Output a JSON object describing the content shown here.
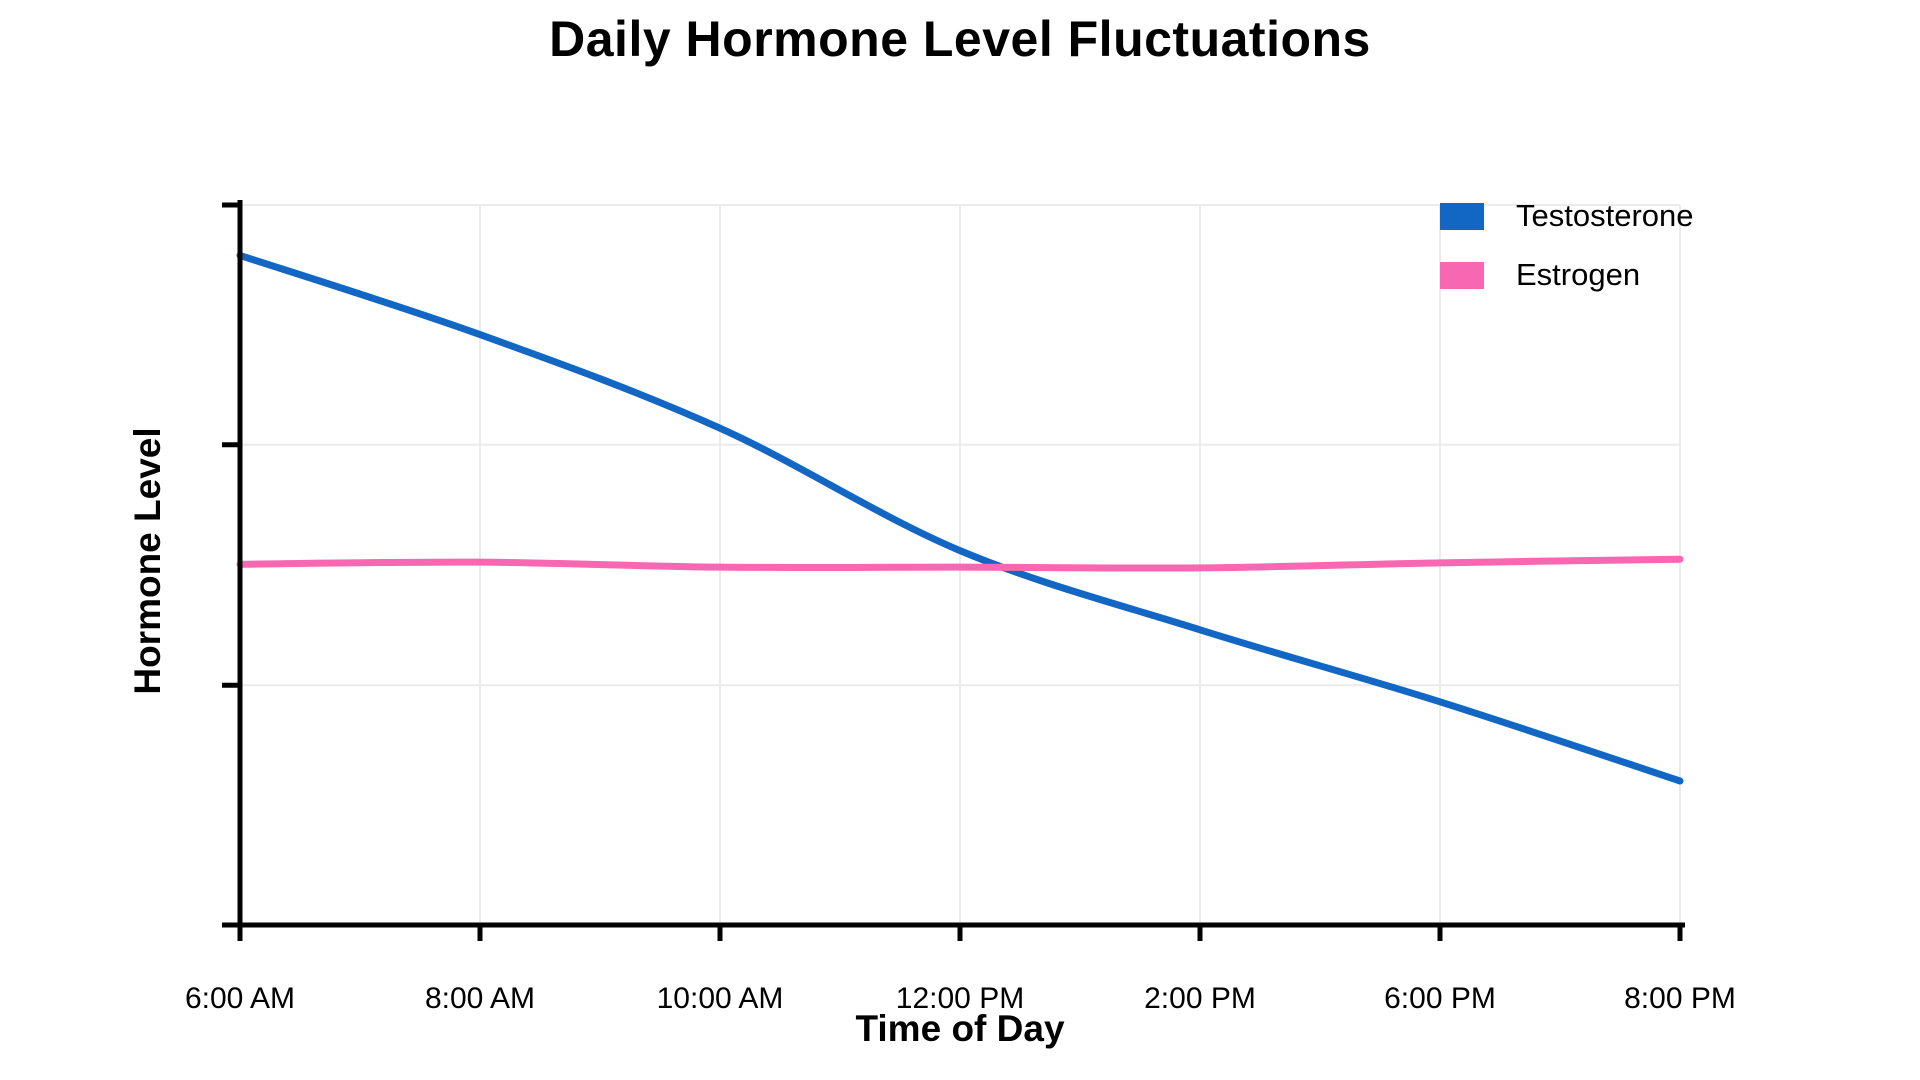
{
  "chart_data": {
    "type": "line",
    "title": "Daily Hormone Level Fluctuations",
    "xlabel": "Time of Day",
    "ylabel": "Hormone Level",
    "categories": [
      "6:00 AM",
      "8:00 AM",
      "10:00 AM",
      "12:00 PM",
      "2:00 PM",
      "6:00 PM",
      "8:00 PM"
    ],
    "series": [
      {
        "name": "Testosterone",
        "color": "#1266C4",
        "values": [
          93,
          82,
          69,
          52,
          41,
          31,
          20
        ]
      },
      {
        "name": "Estrogen",
        "color": "#F868B2",
        "values": [
          50.1,
          50.4,
          49.7,
          49.7,
          49.6,
          50.3,
          50.8
        ]
      }
    ],
    "ylim": [
      0,
      100
    ],
    "y_ticks": [
      0,
      33.3,
      66.7,
      100
    ],
    "y_tick_labels_visible": false,
    "grid": true,
    "grid_color": "#ebebeb",
    "axis_color": "#000000",
    "legend_position": "top-right"
  }
}
